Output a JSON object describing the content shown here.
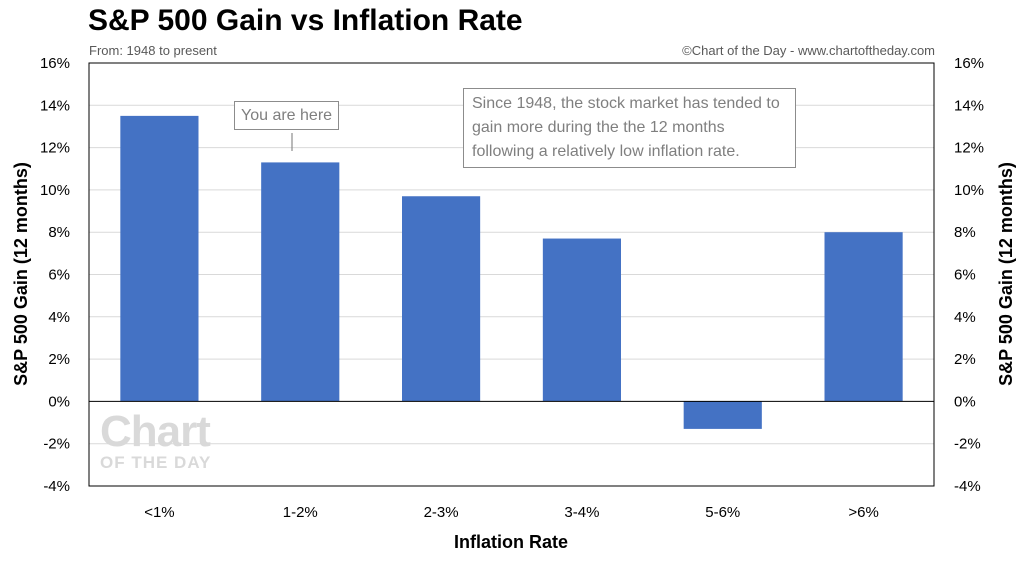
{
  "header": {
    "title": "S&P 500 Gain vs Inflation Rate",
    "subtitle": "From: 1948 to present",
    "credit": "©Chart of the Day - www.chartoftheday.com"
  },
  "annotations": {
    "you_are_here": "You are here",
    "note": "Since 1948, the stock market has tended to gain more during the the 12 months following a relatively low inflation rate."
  },
  "watermark": {
    "line1": "Chart",
    "line2": "OF THE DAY"
  },
  "colors": {
    "bar": "#4472C4",
    "grid": "#d9d9d9",
    "axis": "#000000"
  },
  "chart_data": {
    "type": "bar",
    "title": "S&P 500 Gain vs Inflation Rate",
    "subtitle": "From: 1948 to present",
    "xlabel": "Inflation Rate",
    "ylabel": "S&P 500 Gain (12 months)",
    "categories": [
      "<1%",
      "1-2%",
      "2-3%",
      "3-4%",
      "5-6%",
      ">6%"
    ],
    "values": [
      13.5,
      11.3,
      9.7,
      7.7,
      -1.3,
      8.0
    ],
    "ylim": [
      -4,
      16
    ],
    "yticks": [
      -4,
      -2,
      0,
      2,
      4,
      6,
      8,
      10,
      12,
      14,
      16
    ],
    "ytick_labels": [
      "-4%",
      "-2%",
      "0%",
      "2%",
      "4%",
      "6%",
      "8%",
      "10%",
      "12%",
      "14%",
      "16%"
    ],
    "grid": true,
    "secondary_y_axis": true
  }
}
